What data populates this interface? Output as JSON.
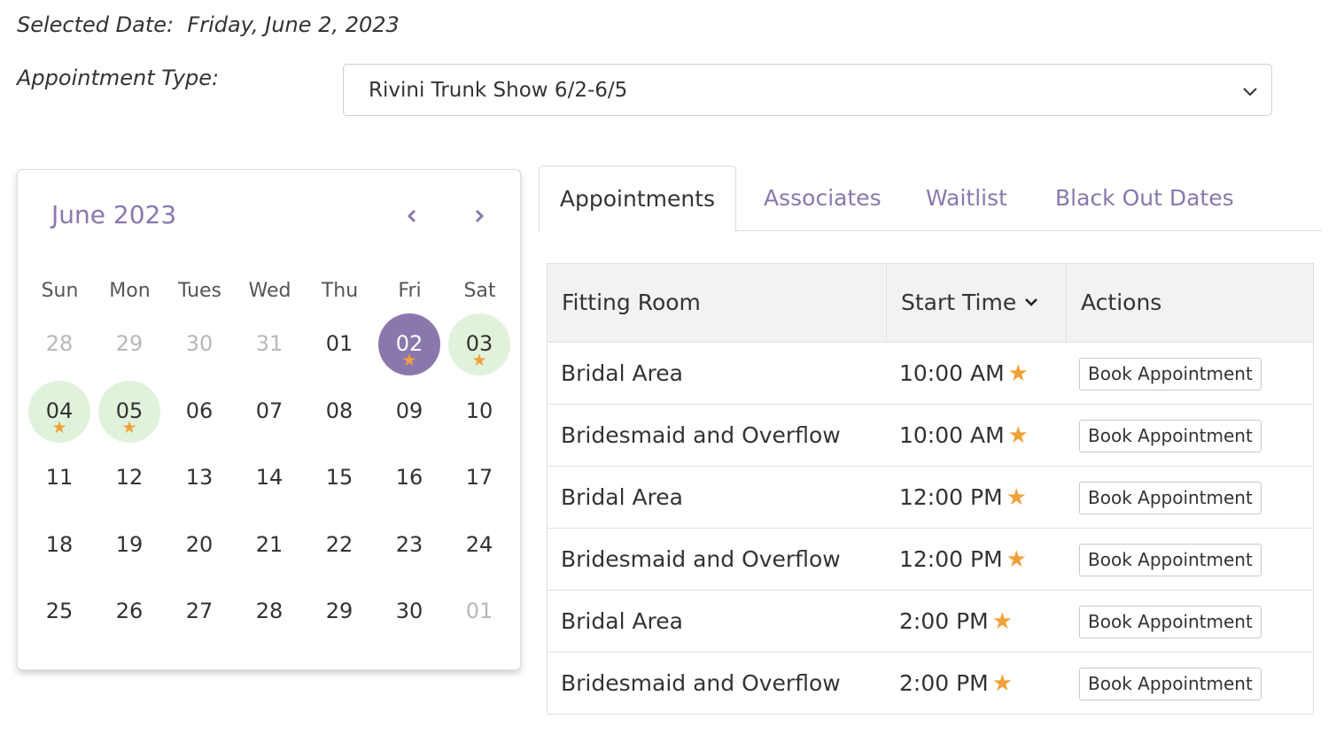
{
  "header": {
    "selected_date_label": "Selected Date:",
    "selected_date_value": "Friday, June 2, 2023",
    "appointment_type_label": "Appointment Type:",
    "appointment_type_value": "Rivini Trunk Show 6/2-6/5"
  },
  "calendar": {
    "month_title": "June 2023",
    "weekdays": [
      "Sun",
      "Mon",
      "Tues",
      "Wed",
      "Thu",
      "Fri",
      "Sat"
    ],
    "weeks": [
      [
        {
          "label": "28",
          "state": "muted"
        },
        {
          "label": "29",
          "state": "muted"
        },
        {
          "label": "30",
          "state": "muted"
        },
        {
          "label": "31",
          "state": "muted"
        },
        {
          "label": "01",
          "state": "normal"
        },
        {
          "label": "02",
          "state": "selected",
          "star": true
        },
        {
          "label": "03",
          "state": "available",
          "star": true
        }
      ],
      [
        {
          "label": "04",
          "state": "available",
          "star": true
        },
        {
          "label": "05",
          "state": "available",
          "star": true
        },
        {
          "label": "06",
          "state": "normal"
        },
        {
          "label": "07",
          "state": "normal"
        },
        {
          "label": "08",
          "state": "normal"
        },
        {
          "label": "09",
          "state": "normal"
        },
        {
          "label": "10",
          "state": "normal"
        }
      ],
      [
        {
          "label": "11",
          "state": "normal"
        },
        {
          "label": "12",
          "state": "normal"
        },
        {
          "label": "13",
          "state": "normal"
        },
        {
          "label": "14",
          "state": "normal"
        },
        {
          "label": "15",
          "state": "normal"
        },
        {
          "label": "16",
          "state": "normal"
        },
        {
          "label": "17",
          "state": "normal"
        }
      ],
      [
        {
          "label": "18",
          "state": "normal"
        },
        {
          "label": "19",
          "state": "normal"
        },
        {
          "label": "20",
          "state": "normal"
        },
        {
          "label": "21",
          "state": "normal"
        },
        {
          "label": "22",
          "state": "normal"
        },
        {
          "label": "23",
          "state": "normal"
        },
        {
          "label": "24",
          "state": "normal"
        }
      ],
      [
        {
          "label": "25",
          "state": "normal"
        },
        {
          "label": "26",
          "state": "normal"
        },
        {
          "label": "27",
          "state": "normal"
        },
        {
          "label": "28",
          "state": "normal"
        },
        {
          "label": "29",
          "state": "normal"
        },
        {
          "label": "30",
          "state": "normal"
        },
        {
          "label": "01",
          "state": "muted"
        }
      ]
    ],
    "star_glyph": "★"
  },
  "tabs": [
    {
      "label": "Appointments",
      "active": true
    },
    {
      "label": "Associates",
      "active": false
    },
    {
      "label": "Waitlist",
      "active": false
    },
    {
      "label": "Black Out Dates",
      "active": false
    }
  ],
  "table": {
    "columns": [
      "Fitting Room",
      "Start Time",
      "Actions"
    ],
    "rows": [
      {
        "room": "Bridal Area",
        "time": "10:00 AM",
        "action": "Book Appointment"
      },
      {
        "room": "Bridesmaid and Overflow",
        "time": "10:00 AM",
        "action": "Book Appointment"
      },
      {
        "room": "Bridal Area",
        "time": "12:00 PM",
        "action": "Book Appointment"
      },
      {
        "room": "Bridesmaid and Overflow",
        "time": "12:00 PM",
        "action": "Book Appointment"
      },
      {
        "room": "Bridal Area",
        "time": "2:00 PM",
        "action": "Book Appointment"
      },
      {
        "room": "Bridesmaid and Overflow",
        "time": "2:00 PM",
        "action": "Book Appointment"
      }
    ]
  },
  "colors": {
    "accent_purple": "#8a78ad",
    "available_green": "#e1f2dc",
    "star_orange": "#f0a13a",
    "header_gray": "#f2f2f2"
  },
  "icons": {
    "select_chevron": "chevron-down-icon",
    "prev_month": "chevron-left-icon",
    "next_month": "chevron-right-icon",
    "sort": "sort-down-icon",
    "availability": "star-icon"
  }
}
